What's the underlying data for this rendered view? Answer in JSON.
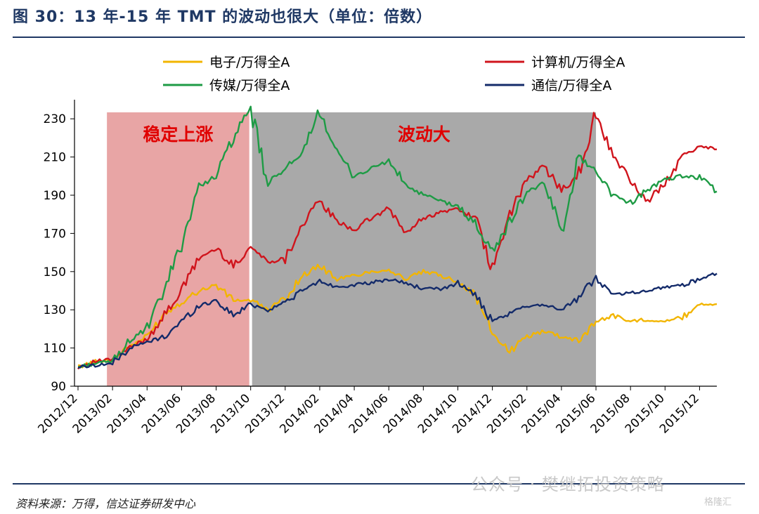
{
  "figure": {
    "title": "图 30：13 年-15 年 TMT 的波动也很大（单位：倍数）",
    "source": "资料来源：万得，信达证券研发中心",
    "watermark": "公众号 · 樊继拓投资策略",
    "badge": "格隆汇"
  },
  "chart_data": {
    "type": "line",
    "ylim": [
      90,
      240
    ],
    "yticks": [
      90,
      110,
      130,
      150,
      170,
      190,
      210,
      230
    ],
    "xticks": [
      "2012/12",
      "2013/02",
      "2013/04",
      "2013/06",
      "2013/08",
      "2013/10",
      "2013/12",
      "2014/02",
      "2014/04",
      "2014/06",
      "2014/08",
      "2014/10",
      "2014/12",
      "2015/02",
      "2015/04",
      "2015/06",
      "2015/08",
      "2015/10",
      "2015/12"
    ],
    "x": [
      "2012/12",
      "2013/01",
      "2013/02",
      "2013/03",
      "2013/04",
      "2013/05",
      "2013/06",
      "2013/07",
      "2013/08",
      "2013/09",
      "2013/10",
      "2013/11",
      "2013/12",
      "2014/01",
      "2014/02",
      "2014/03",
      "2014/04",
      "2014/05",
      "2014/06",
      "2014/07",
      "2014/08",
      "2014/09",
      "2014/10",
      "2014/11",
      "2014/12",
      "2015/01",
      "2015/02",
      "2015/03",
      "2015/04",
      "2015/05",
      "2015/06",
      "2015/07",
      "2015/08",
      "2015/09",
      "2015/10",
      "2015/11",
      "2015/12",
      "2016/01"
    ],
    "legend_position": "top",
    "regions": [
      {
        "label": "稳定上涨",
        "from": "2013/02",
        "to": "2013/10",
        "color": "#e8a5a5"
      },
      {
        "label": "波动大",
        "from": "2013/10",
        "to": "2015/06",
        "color": "#a9a9a9"
      }
    ],
    "series": [
      {
        "name": "电子/万得全A",
        "color": "#f2b500",
        "values": [
          100,
          103,
          104,
          111,
          116,
          128,
          134,
          140,
          143,
          135,
          135,
          130,
          136,
          148,
          153,
          146,
          148,
          150,
          151,
          146,
          150,
          148,
          145,
          138,
          118,
          108,
          116,
          119,
          116,
          114,
          124,
          127,
          124,
          125,
          124,
          126,
          133,
          133
        ]
      },
      {
        "name": "计算机/万得全A",
        "color": "#d0141c",
        "values": [
          100,
          103,
          104,
          110,
          115,
          127,
          140,
          157,
          162,
          153,
          163,
          155,
          157,
          175,
          187,
          176,
          172,
          178,
          183,
          170,
          178,
          181,
          183,
          178,
          150,
          180,
          198,
          205,
          193,
          200,
          233,
          210,
          198,
          186,
          197,
          210,
          216,
          214
        ]
      },
      {
        "name": "传媒/万得全A",
        "color": "#1e9b45",
        "values": [
          100,
          102,
          103,
          114,
          120,
          140,
          165,
          195,
          200,
          220,
          235,
          195,
          205,
          210,
          235,
          212,
          200,
          204,
          208,
          195,
          190,
          187,
          184,
          175,
          160,
          176,
          192,
          196,
          172,
          210,
          203,
          190,
          186,
          193,
          198,
          200,
          199,
          192
        ]
      },
      {
        "name": "通信/万得全A",
        "color": "#142b6a",
        "values": [
          100,
          101,
          102,
          110,
          113,
          116,
          124,
          132,
          135,
          127,
          133,
          130,
          134,
          140,
          145,
          142,
          143,
          144,
          146,
          144,
          141,
          141,
          144,
          138,
          123,
          128,
          132,
          133,
          130,
          136,
          147,
          138,
          139,
          140,
          142,
          143,
          146,
          149
        ]
      }
    ]
  }
}
